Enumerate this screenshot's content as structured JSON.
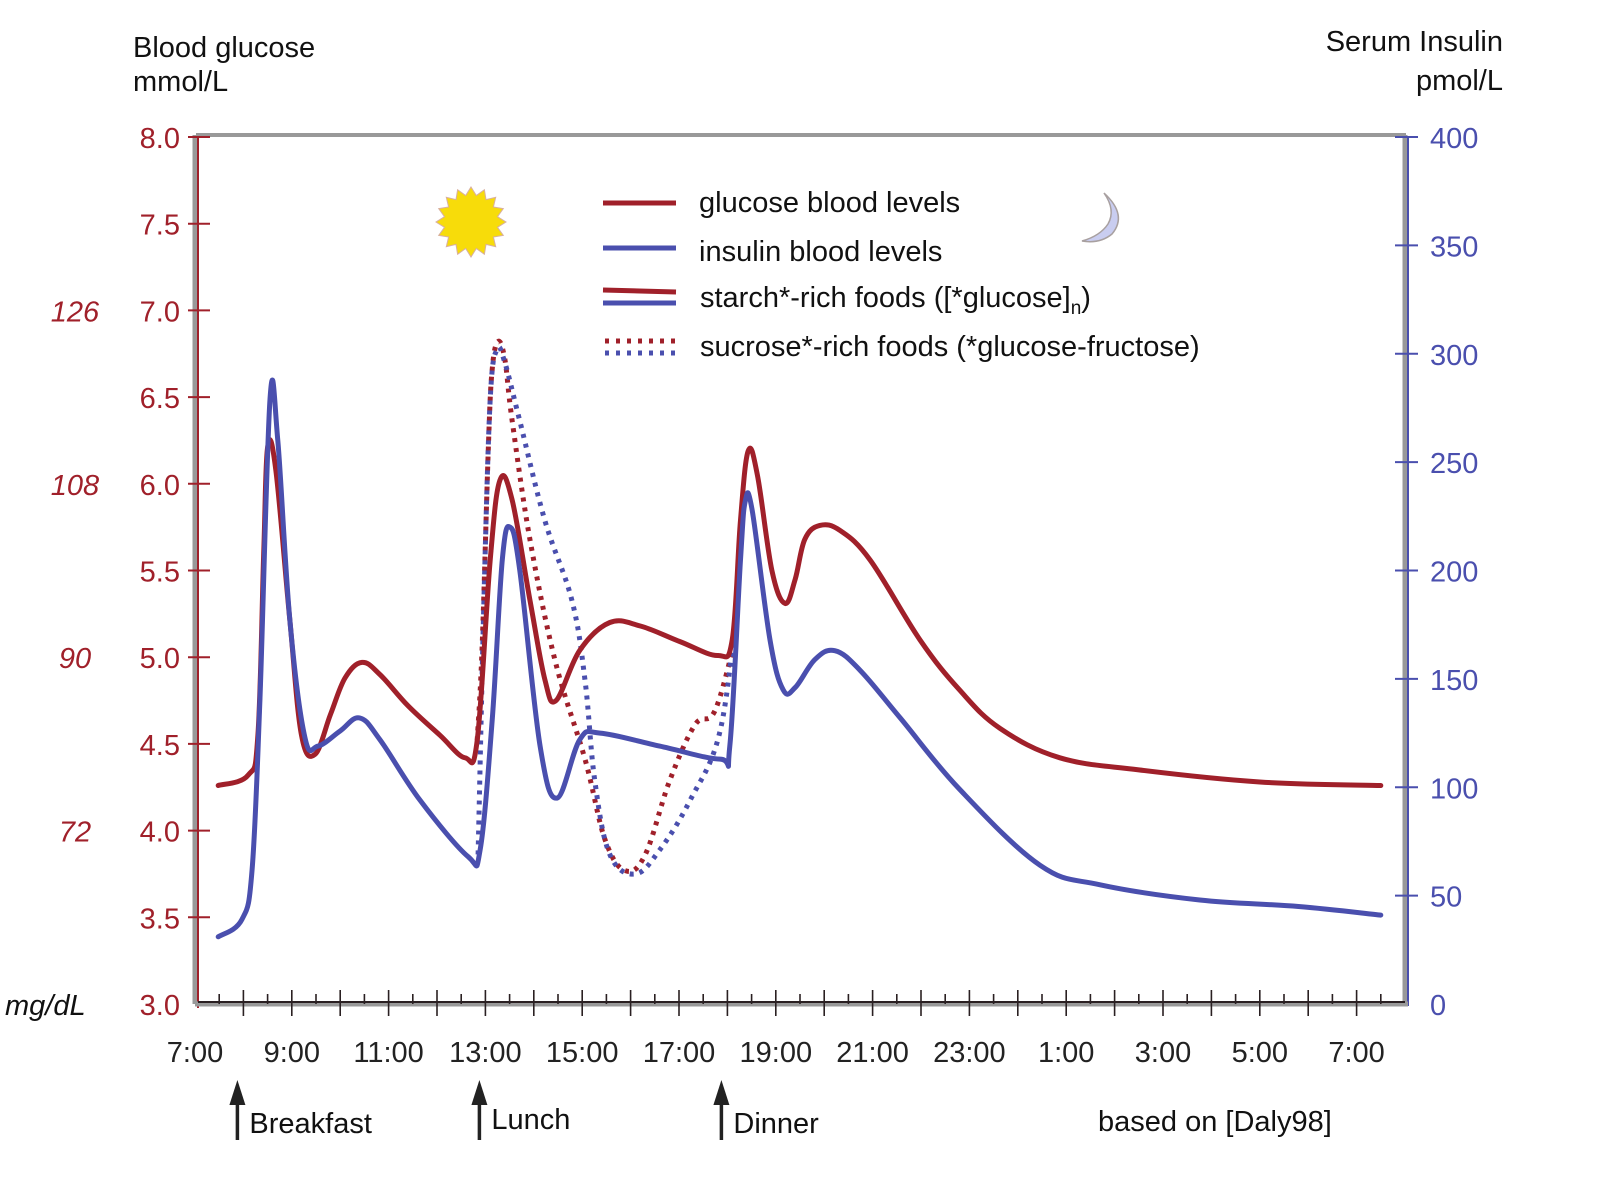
{
  "chart_data": {
    "type": "line",
    "left_axis": {
      "title_line1": "Blood glucose",
      "title_line2": "mmol/L",
      "range": [
        3.0,
        8.0
      ],
      "ticks": [
        "3.0",
        "3.5",
        "4.0",
        "4.5",
        "5.0",
        "5.5",
        "6.0",
        "6.5",
        "7.0",
        "7.5",
        "8.0"
      ],
      "tick_values": [
        3.0,
        3.5,
        4.0,
        4.5,
        5.0,
        5.5,
        6.0,
        6.5,
        7.0,
        7.5,
        8.0
      ],
      "color": "#a0202a"
    },
    "mgdl_axis": {
      "unit": "mg/dL",
      "ticks": [
        {
          "label": "72",
          "mmol": 4.0
        },
        {
          "label": "90",
          "mmol": 5.0
        },
        {
          "label": "108",
          "mmol": 6.0
        },
        {
          "label": "126",
          "mmol": 7.0
        }
      ]
    },
    "right_axis": {
      "title_line1": "Serum Insulin",
      "title_line2": "pmol/L",
      "range": [
        0,
        400
      ],
      "ticks": [
        "0",
        "50",
        "100",
        "150",
        "200",
        "250",
        "300",
        "350",
        "400"
      ],
      "tick_values": [
        0,
        50,
        100,
        150,
        200,
        250,
        300,
        350,
        400
      ],
      "color": "#4a4fae"
    },
    "x_axis": {
      "unit": "hours since 7:00",
      "range": [
        0,
        25
      ],
      "ticks": [
        {
          "label": "7:00",
          "h": 0
        },
        {
          "label": "9:00",
          "h": 2
        },
        {
          "label": "11:00",
          "h": 4
        },
        {
          "label": "13:00",
          "h": 6
        },
        {
          "label": "15:00",
          "h": 8
        },
        {
          "label": "17:00",
          "h": 10
        },
        {
          "label": "19:00",
          "h": 12
        },
        {
          "label": "21:00",
          "h": 14
        },
        {
          "label": "23:00",
          "h": 16
        },
        {
          "label": "1:00",
          "h": 18
        },
        {
          "label": "3:00",
          "h": 20
        },
        {
          "label": "5:00",
          "h": 22
        },
        {
          "label": "7:00",
          "h": 24
        }
      ]
    },
    "meals": [
      {
        "label": "Breakfast",
        "h": 1.0
      },
      {
        "label": "Lunch",
        "h": 6.0
      },
      {
        "label": "Dinner",
        "h": 11.0
      }
    ],
    "legend": [
      {
        "label": "glucose blood levels",
        "style": "solid-red"
      },
      {
        "label": "insulin blood levels",
        "style": "solid-blue"
      },
      {
        "label": "starch*-rich foods ([*glucose]",
        "subscript": "n",
        "suffix": ")",
        "style": "double-solid"
      },
      {
        "label": "sucrose*-rich foods (*glucose-fructose)",
        "style": "double-dotted"
      }
    ],
    "source_note": "based on [Daly98]",
    "series": [
      {
        "name": "glucose (starch-rich)",
        "axis": "left",
        "color": "#a0202a",
        "dash": "solid",
        "points": [
          [
            0.48,
            4.26
          ],
          [
            1.1,
            4.32
          ],
          [
            1.3,
            4.55
          ],
          [
            1.42,
            5.6
          ],
          [
            1.5,
            6.21
          ],
          [
            1.67,
            6.08
          ],
          [
            1.96,
            5.21
          ],
          [
            2.2,
            4.55
          ],
          [
            2.48,
            4.44
          ],
          [
            2.8,
            4.67
          ],
          [
            3.1,
            4.88
          ],
          [
            3.45,
            4.97
          ],
          [
            3.82,
            4.9
          ],
          [
            4.4,
            4.72
          ],
          [
            5.06,
            4.55
          ],
          [
            5.58,
            4.42
          ],
          [
            5.83,
            4.52
          ],
          [
            6.1,
            5.56
          ],
          [
            6.3,
            6.02
          ],
          [
            6.55,
            5.91
          ],
          [
            6.92,
            5.33
          ],
          [
            7.23,
            4.87
          ],
          [
            7.46,
            4.75
          ],
          [
            7.95,
            5.04
          ],
          [
            8.57,
            5.2
          ],
          [
            9.2,
            5.18
          ],
          [
            10.02,
            5.09
          ],
          [
            10.8,
            5.01
          ],
          [
            11.1,
            5.1
          ],
          [
            11.27,
            5.79
          ],
          [
            11.43,
            6.19
          ],
          [
            11.62,
            6.05
          ],
          [
            11.92,
            5.5
          ],
          [
            12.19,
            5.31
          ],
          [
            12.4,
            5.45
          ],
          [
            12.6,
            5.68
          ],
          [
            12.91,
            5.76
          ],
          [
            13.33,
            5.73
          ],
          [
            13.95,
            5.56
          ],
          [
            14.98,
            5.1
          ],
          [
            15.8,
            4.81
          ],
          [
            16.63,
            4.59
          ],
          [
            17.87,
            4.42
          ],
          [
            19.5,
            4.35
          ],
          [
            22.0,
            4.28
          ],
          [
            24.5,
            4.26
          ]
        ]
      },
      {
        "name": "insulin (starch-rich)",
        "axis": "right",
        "color": "#4a4fae",
        "dash": "solid",
        "points": [
          [
            0.48,
            31
          ],
          [
            0.97,
            39
          ],
          [
            1.18,
            62
          ],
          [
            1.34,
            140
          ],
          [
            1.55,
            279
          ],
          [
            1.71,
            260
          ],
          [
            1.96,
            177
          ],
          [
            2.27,
            123
          ],
          [
            2.54,
            119
          ],
          [
            3.0,
            126
          ],
          [
            3.4,
            132
          ],
          [
            3.82,
            122
          ],
          [
            4.65,
            94
          ],
          [
            5.64,
            68
          ],
          [
            5.89,
            71
          ],
          [
            6.14,
            131
          ],
          [
            6.35,
            205
          ],
          [
            6.51,
            220
          ],
          [
            6.71,
            200
          ],
          [
            7.13,
            119
          ],
          [
            7.48,
            95
          ],
          [
            7.95,
            122
          ],
          [
            8.37,
            125
          ],
          [
            9.6,
            119
          ],
          [
            10.85,
            113
          ],
          [
            11.05,
            119
          ],
          [
            11.27,
            205
          ],
          [
            11.37,
            232
          ],
          [
            11.51,
            228
          ],
          [
            11.88,
            168
          ],
          [
            12.15,
            145
          ],
          [
            12.4,
            146
          ],
          [
            12.81,
            159
          ],
          [
            13.22,
            163
          ],
          [
            13.74,
            154
          ],
          [
            14.57,
            132
          ],
          [
            15.8,
            99
          ],
          [
            17.46,
            64
          ],
          [
            18.7,
            55
          ],
          [
            20.76,
            48
          ],
          [
            22.8,
            45
          ],
          [
            24.5,
            41
          ]
        ]
      },
      {
        "name": "glucose (sucrose-rich)",
        "axis": "left",
        "color": "#a0202a",
        "dash": "dotted",
        "points": [
          [
            5.83,
            4.52
          ],
          [
            5.93,
            5.04
          ],
          [
            6.06,
            6.2
          ],
          [
            6.14,
            6.66
          ],
          [
            6.26,
            6.82
          ],
          [
            6.4,
            6.72
          ],
          [
            6.55,
            6.37
          ],
          [
            6.92,
            5.68
          ],
          [
            7.44,
            4.98
          ],
          [
            8.06,
            4.41
          ],
          [
            8.47,
            3.95
          ],
          [
            8.88,
            3.77
          ],
          [
            9.3,
            3.86
          ],
          [
            9.81,
            4.29
          ],
          [
            10.33,
            4.61
          ],
          [
            10.74,
            4.69
          ],
          [
            11.16,
            5.1
          ]
        ]
      },
      {
        "name": "insulin (sucrose-rich)",
        "axis": "right",
        "color": "#4a4fae",
        "dash": "dotted",
        "points": [
          [
            5.85,
            69
          ],
          [
            5.97,
            186
          ],
          [
            6.1,
            279
          ],
          [
            6.24,
            302
          ],
          [
            6.4,
            296
          ],
          [
            6.71,
            269
          ],
          [
            7.23,
            223
          ],
          [
            7.79,
            186
          ],
          [
            8.06,
            149
          ],
          [
            8.26,
            103
          ],
          [
            8.57,
            69
          ],
          [
            9.09,
            60
          ],
          [
            9.6,
            71
          ],
          [
            10.23,
            94
          ],
          [
            10.85,
            126
          ],
          [
            11.2,
            185
          ]
        ]
      }
    ],
    "decorations": {
      "sun_icon": "sun-icon",
      "moon_icon": "moon-icon",
      "sun_color": "#f7dc0a"
    }
  }
}
